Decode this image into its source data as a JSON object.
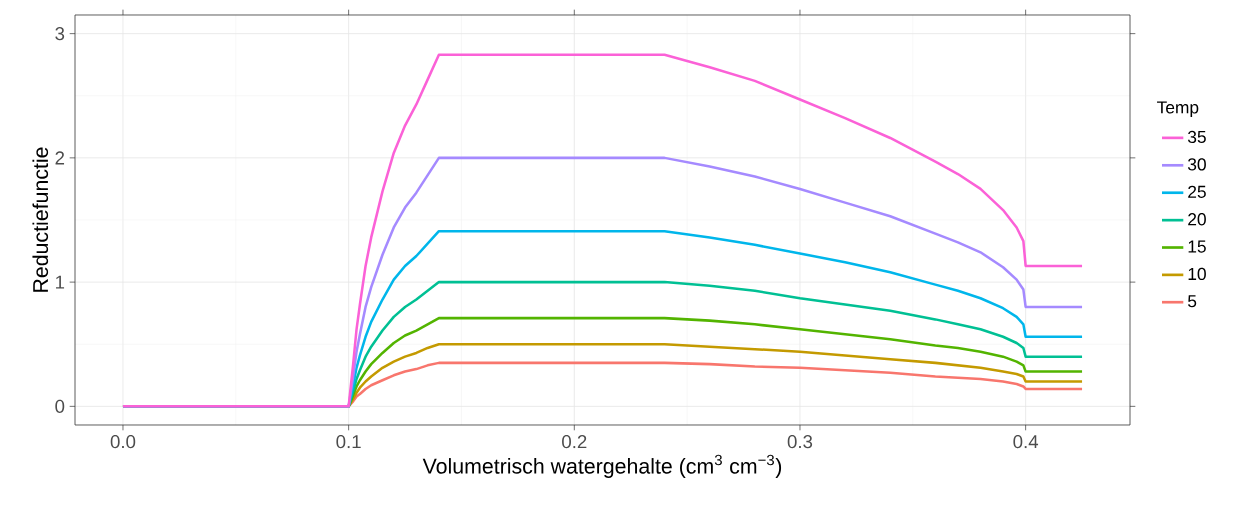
{
  "chart_data": {
    "type": "line",
    "xlabel": "Volumetrisch watergehalte (cm$^{3}$ cm$^{−3}$)",
    "ylabel": "Reductiefunctie",
    "legend_title": "Temp",
    "legend": "right",
    "grid": true,
    "marker": "none",
    "line_style": "solid",
    "x": [
      0,
      0.1,
      0.101,
      0.102,
      0.1035,
      0.105,
      0.1075,
      0.11,
      0.115,
      0.12,
      0.125,
      0.13,
      0.135,
      0.14,
      0.24,
      0.26,
      0.28,
      0.3,
      0.32,
      0.34,
      0.36,
      0.37,
      0.38,
      0.39,
      0.396,
      0.399,
      0.4,
      0.425
    ],
    "xlim": [
      -0.02125,
      0.44625
    ],
    "ylim": [
      -0.15,
      3.15
    ],
    "xticks": [
      {
        "value": 0,
        "label": "0.0"
      },
      0.1,
      0.2,
      0.3,
      0.4
    ],
    "yticks": [
      0,
      1,
      2,
      3
    ],
    "series": [
      {
        "name": "35",
        "color": "#fb61d7",
        "values": [
          0,
          0,
          0.17,
          0.34,
          0.62,
          0.82,
          1.13,
          1.36,
          1.73,
          2.04,
          2.26,
          2.43,
          2.63,
          2.83,
          2.83,
          2.73,
          2.62,
          2.47,
          2.32,
          2.16,
          1.97,
          1.87,
          1.75,
          1.58,
          1.44,
          1.33,
          1.13,
          1.13
        ]
      },
      {
        "name": "30",
        "color": "#a58aff",
        "values": [
          0,
          0,
          0.12,
          0.24,
          0.44,
          0.58,
          0.8,
          0.96,
          1.22,
          1.44,
          1.6,
          1.72,
          1.86,
          2,
          2,
          1.93,
          1.85,
          1.75,
          1.64,
          1.53,
          1.39,
          1.32,
          1.24,
          1.12,
          1.02,
          0.94,
          0.8,
          0.8
        ]
      },
      {
        "name": "25",
        "color": "#00b6eb",
        "values": [
          0,
          0,
          0.08,
          0.17,
          0.31,
          0.41,
          0.56,
          0.68,
          0.86,
          1.02,
          1.13,
          1.21,
          1.31,
          1.41,
          1.41,
          1.36,
          1.3,
          1.23,
          1.16,
          1.08,
          0.98,
          0.93,
          0.87,
          0.79,
          0.72,
          0.66,
          0.56,
          0.56
        ]
      },
      {
        "name": "20",
        "color": "#00c094",
        "values": [
          0,
          0,
          0.06,
          0.12,
          0.22,
          0.29,
          0.4,
          0.48,
          0.61,
          0.72,
          0.8,
          0.86,
          0.93,
          1,
          1,
          0.97,
          0.93,
          0.87,
          0.82,
          0.77,
          0.7,
          0.66,
          0.62,
          0.56,
          0.51,
          0.47,
          0.4,
          0.4
        ]
      },
      {
        "name": "15",
        "color": "#53b400",
        "values": [
          0,
          0,
          0.04,
          0.09,
          0.16,
          0.21,
          0.28,
          0.34,
          0.43,
          0.51,
          0.57,
          0.61,
          0.66,
          0.71,
          0.71,
          0.69,
          0.66,
          0.62,
          0.58,
          0.54,
          0.49,
          0.47,
          0.44,
          0.4,
          0.36,
          0.33,
          0.28,
          0.28
        ]
      },
      {
        "name": "10",
        "color": "#c49a00",
        "values": [
          0,
          0,
          0.03,
          0.06,
          0.11,
          0.15,
          0.2,
          0.24,
          0.31,
          0.36,
          0.4,
          0.43,
          0.47,
          0.5,
          0.5,
          0.48,
          0.46,
          0.44,
          0.41,
          0.38,
          0.35,
          0.33,
          0.31,
          0.28,
          0.26,
          0.24,
          0.2,
          0.2
        ]
      },
      {
        "name": "5",
        "color": "#f8766d",
        "values": [
          0,
          0,
          0.02,
          0.04,
          0.08,
          0.1,
          0.14,
          0.17,
          0.21,
          0.25,
          0.28,
          0.3,
          0.33,
          0.35,
          0.35,
          0.34,
          0.32,
          0.31,
          0.29,
          0.27,
          0.24,
          0.23,
          0.22,
          0.2,
          0.18,
          0.16,
          0.14,
          0.14
        ]
      }
    ]
  }
}
